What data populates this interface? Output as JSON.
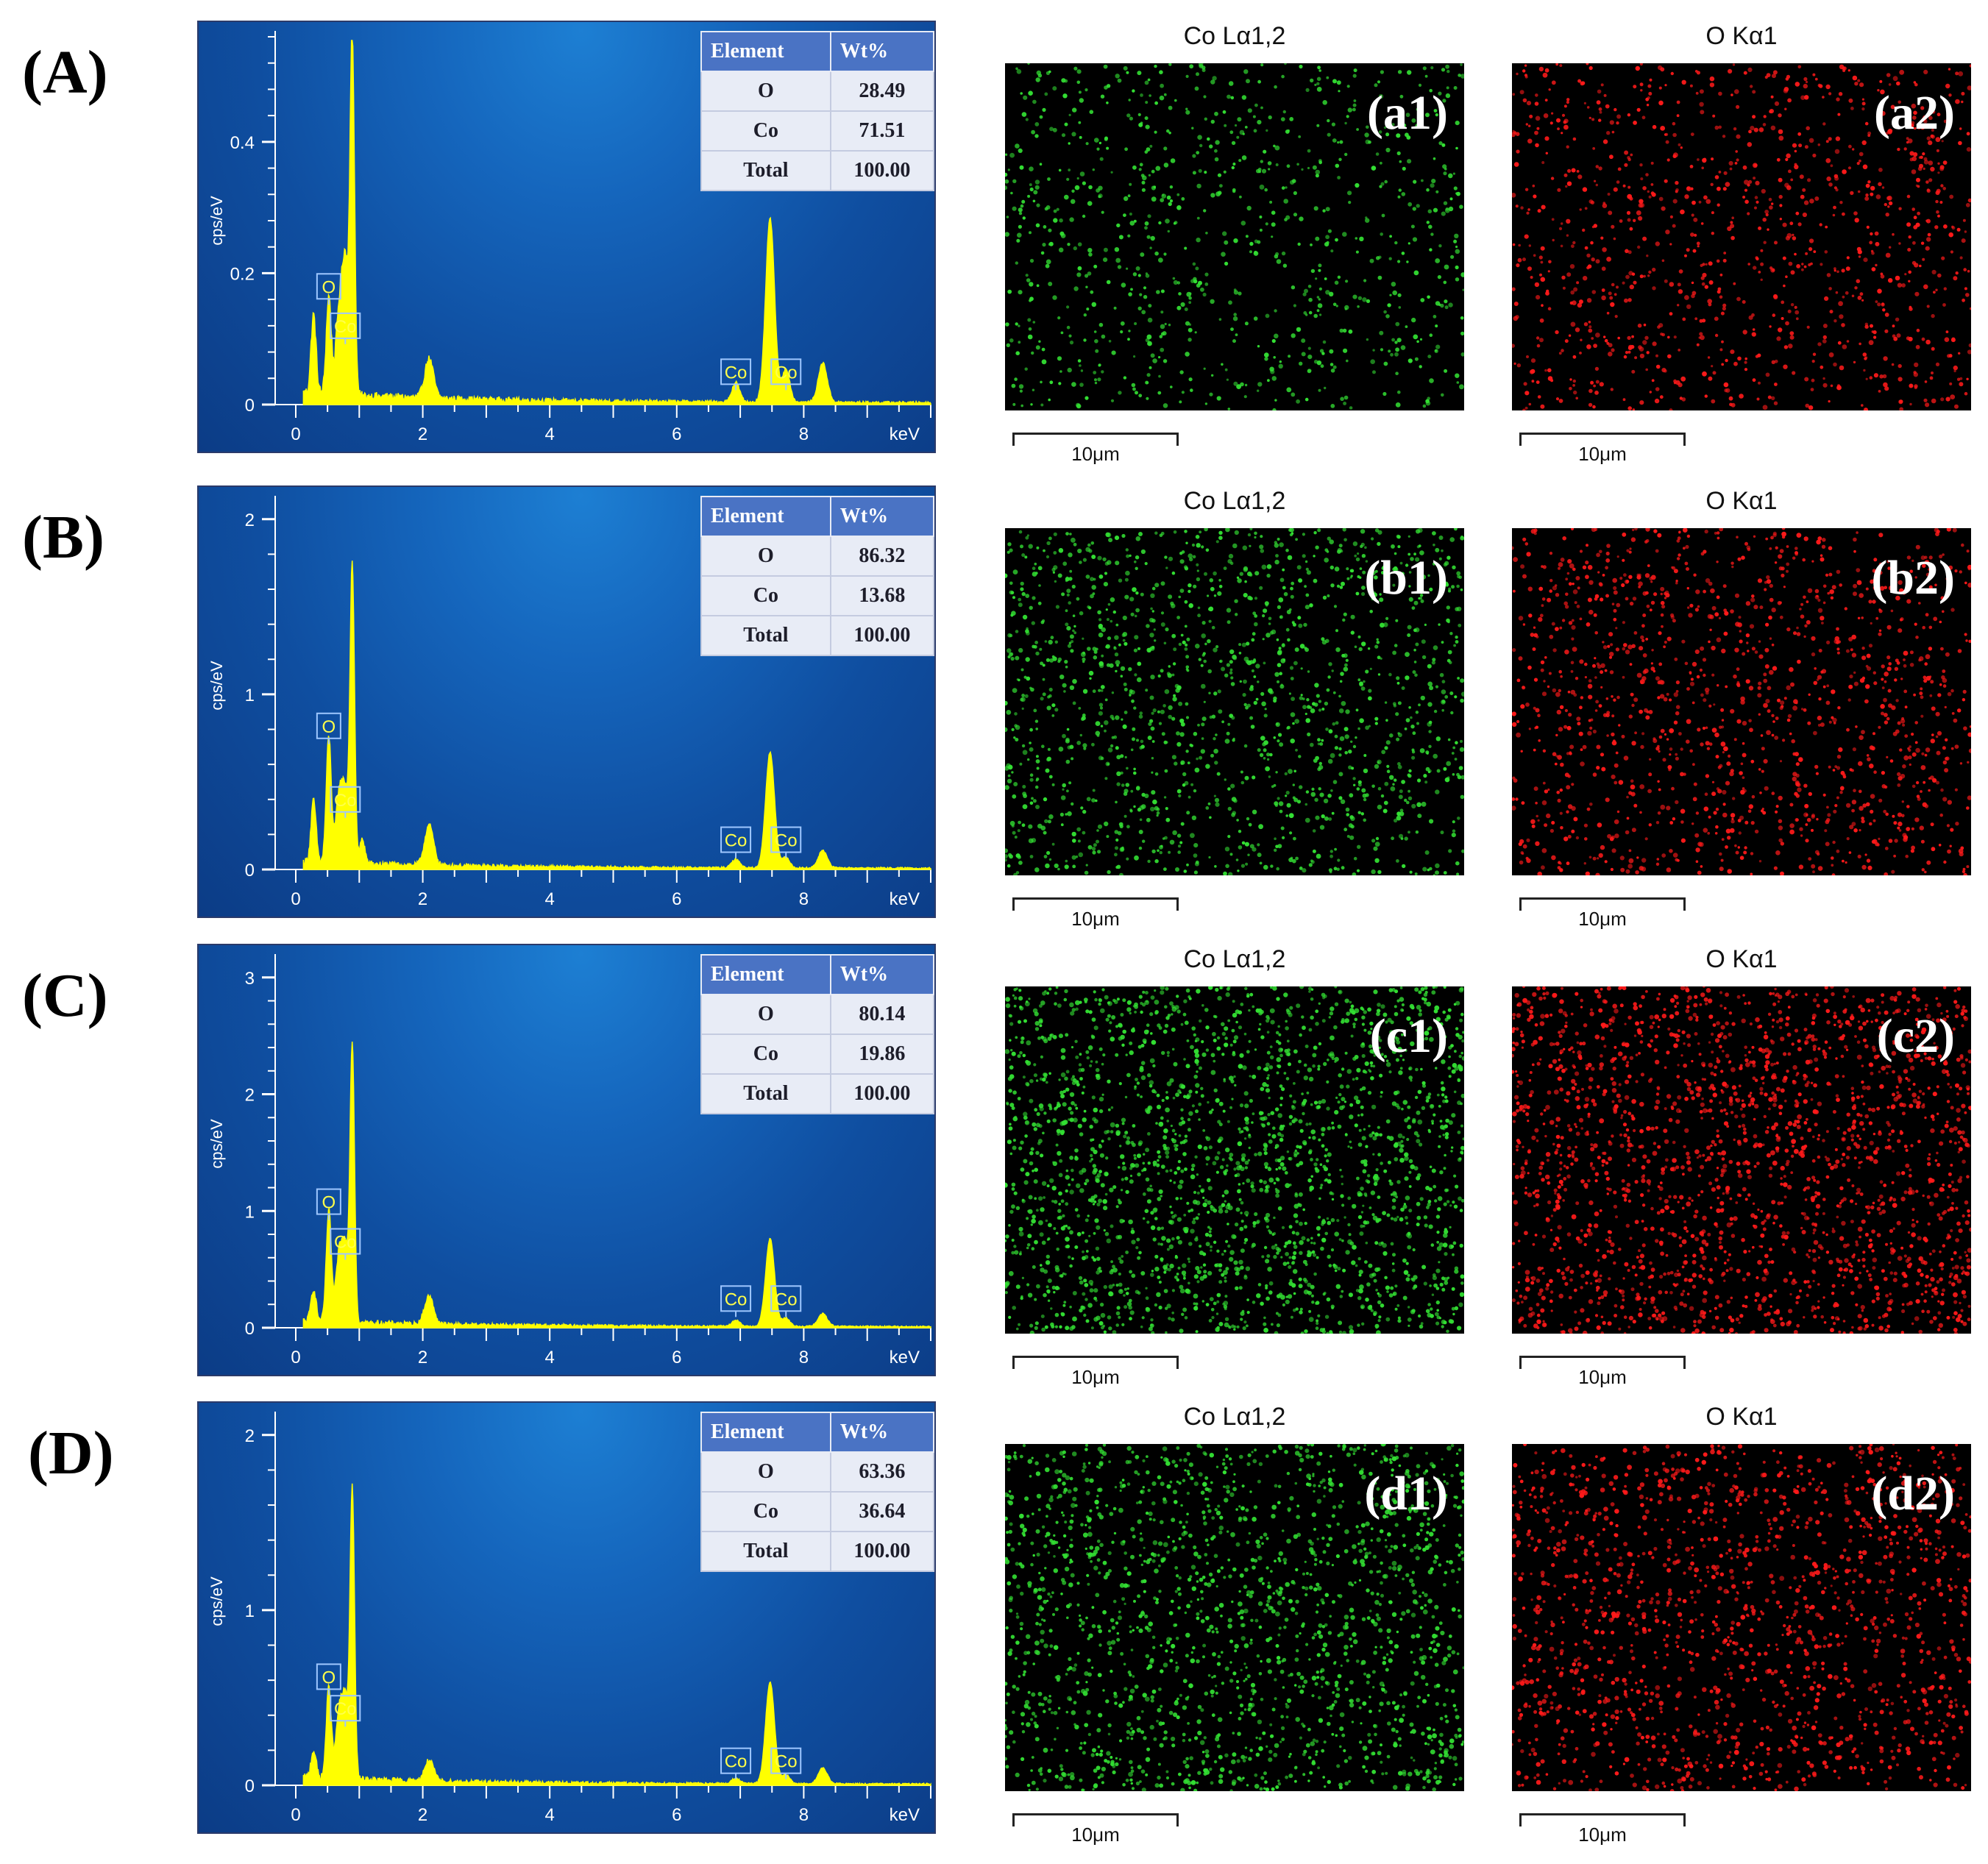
{
  "colors": {
    "co_map": "#33e033",
    "o_map": "#ff1a1a",
    "spectrum": "#ffff00",
    "peak_box": "#9fc7ff"
  },
  "axis": {
    "x_unit": "keV",
    "y_label": "cps/eV",
    "x_ticks": [
      "0",
      "2",
      "4",
      "6",
      "8"
    ]
  },
  "scale_bar_text": "10μm",
  "table_headers": [
    "Element",
    "Wt%"
  ],
  "rows": [
    {
      "label": "(A)",
      "chart_data": {
        "type": "line",
        "xlabel": "keV",
        "ylabel": "cps/eV",
        "xlim": [
          0,
          10
        ],
        "ylim": [
          0,
          0.56
        ],
        "y_ticks": [
          "0",
          "0.2",
          "0.4"
        ],
        "y_tick_values": [
          0,
          0.2,
          0.4
        ],
        "peaks": [
          {
            "x": 0.28,
            "y": 0.12,
            "w": 0.04
          },
          {
            "x": 0.52,
            "y": 0.15,
            "w": 0.04
          },
          {
            "x": 0.68,
            "y": 0.12,
            "w": 0.05
          },
          {
            "x": 0.78,
            "y": 0.2,
            "w": 0.05
          },
          {
            "x": 0.89,
            "y": 0.54,
            "w": 0.035
          },
          {
            "x": 2.1,
            "y": 0.06,
            "w": 0.07
          },
          {
            "x": 6.93,
            "y": 0.03,
            "w": 0.06
          },
          {
            "x": 7.47,
            "y": 0.28,
            "w": 0.07
          },
          {
            "x": 7.72,
            "y": 0.05,
            "w": 0.06
          },
          {
            "x": 8.3,
            "y": 0.06,
            "w": 0.07
          }
        ],
        "noise": 0.012,
        "annotations": [
          {
            "text": "O",
            "x": 0.52,
            "y": 0.18
          },
          {
            "text": "Co",
            "x": 0.78,
            "y": 0.12
          },
          {
            "text": "Co",
            "x": 6.93,
            "y": 0.05
          },
          {
            "text": "Co",
            "x": 7.72,
            "y": 0.05
          }
        ]
      },
      "table": [
        {
          "element": "O",
          "wt": "28.49"
        },
        {
          "element": "Co",
          "wt": "71.51"
        },
        {
          "element": "Total",
          "wt": "100.00"
        }
      ],
      "maps": [
        {
          "title": "Co Lα1,2",
          "label": "(a1)",
          "element": "Co",
          "density": 900
        },
        {
          "title": "O Kα1",
          "label": "(a2)",
          "element": "O",
          "density": 1100
        }
      ]
    },
    {
      "label": "(B)",
      "chart_data": {
        "type": "line",
        "xlabel": "keV",
        "ylabel": "cps/eV",
        "xlim": [
          0,
          10
        ],
        "ylim": [
          0,
          2.1
        ],
        "y_ticks": [
          "0",
          "1",
          "2"
        ],
        "y_tick_values": [
          0,
          1,
          2
        ],
        "peaks": [
          {
            "x": 0.28,
            "y": 0.35,
            "w": 0.04
          },
          {
            "x": 0.52,
            "y": 0.72,
            "w": 0.04
          },
          {
            "x": 0.68,
            "y": 0.38,
            "w": 0.05
          },
          {
            "x": 0.78,
            "y": 0.4,
            "w": 0.05
          },
          {
            "x": 0.89,
            "y": 1.68,
            "w": 0.035
          },
          {
            "x": 1.05,
            "y": 0.14,
            "w": 0.04
          },
          {
            "x": 2.1,
            "y": 0.23,
            "w": 0.07
          },
          {
            "x": 6.93,
            "y": 0.05,
            "w": 0.06
          },
          {
            "x": 7.47,
            "y": 0.66,
            "w": 0.07
          },
          {
            "x": 7.72,
            "y": 0.06,
            "w": 0.06
          },
          {
            "x": 8.3,
            "y": 0.1,
            "w": 0.07
          }
        ],
        "noise": 0.03,
        "annotations": [
          {
            "text": "O",
            "x": 0.52,
            "y": 0.82
          },
          {
            "text": "Co",
            "x": 0.78,
            "y": 0.4
          },
          {
            "text": "Co",
            "x": 6.93,
            "y": 0.17
          },
          {
            "text": "Co",
            "x": 7.72,
            "y": 0.17
          }
        ]
      },
      "table": [
        {
          "element": "O",
          "wt": "86.32"
        },
        {
          "element": "Co",
          "wt": "13.68"
        },
        {
          "element": "Total",
          "wt": "100.00"
        }
      ],
      "maps": [
        {
          "title": "Co Lα1,2",
          "label": "(b1)",
          "element": "Co",
          "density": 1500
        },
        {
          "title": "O Kα1",
          "label": "(b2)",
          "element": "O",
          "density": 1300
        }
      ]
    },
    {
      "label": "(C)",
      "chart_data": {
        "type": "line",
        "xlabel": "keV",
        "ylabel": "cps/eV",
        "xlim": [
          0,
          10
        ],
        "ylim": [
          0,
          3.15
        ],
        "y_ticks": [
          "0",
          "1",
          "2",
          "3"
        ],
        "y_tick_values": [
          0,
          1,
          2,
          3
        ],
        "peaks": [
          {
            "x": 0.28,
            "y": 0.28,
            "w": 0.04
          },
          {
            "x": 0.52,
            "y": 0.95,
            "w": 0.04
          },
          {
            "x": 0.68,
            "y": 0.55,
            "w": 0.05
          },
          {
            "x": 0.78,
            "y": 0.62,
            "w": 0.05
          },
          {
            "x": 0.89,
            "y": 2.36,
            "w": 0.035
          },
          {
            "x": 2.1,
            "y": 0.24,
            "w": 0.07
          },
          {
            "x": 6.93,
            "y": 0.05,
            "w": 0.06
          },
          {
            "x": 7.47,
            "y": 0.75,
            "w": 0.07
          },
          {
            "x": 7.72,
            "y": 0.07,
            "w": 0.06
          },
          {
            "x": 8.3,
            "y": 0.11,
            "w": 0.07
          }
        ],
        "noise": 0.04,
        "annotations": [
          {
            "text": "O",
            "x": 0.52,
            "y": 1.08
          },
          {
            "text": "Co",
            "x": 0.78,
            "y": 0.74
          },
          {
            "text": "Co",
            "x": 6.93,
            "y": 0.25
          },
          {
            "text": "Co",
            "x": 7.72,
            "y": 0.25
          }
        ]
      },
      "table": [
        {
          "element": "O",
          "wt": "80.14"
        },
        {
          "element": "Co",
          "wt": "19.86"
        },
        {
          "element": "Total",
          "wt": "100.00"
        }
      ],
      "maps": [
        {
          "title": "Co Lα1,2",
          "label": "(c1)",
          "element": "Co",
          "density": 2200
        },
        {
          "title": "O Kα1",
          "label": "(c2)",
          "element": "O",
          "density": 2000
        }
      ]
    },
    {
      "label": "(D)",
      "chart_data": {
        "type": "line",
        "xlabel": "keV",
        "ylabel": "cps/eV",
        "xlim": [
          0,
          10
        ],
        "ylim": [
          0,
          2.1
        ],
        "y_ticks": [
          "0",
          "1",
          "2"
        ],
        "y_tick_values": [
          0,
          1,
          2
        ],
        "peaks": [
          {
            "x": 0.28,
            "y": 0.16,
            "w": 0.04
          },
          {
            "x": 0.52,
            "y": 0.52,
            "w": 0.04
          },
          {
            "x": 0.68,
            "y": 0.36,
            "w": 0.05
          },
          {
            "x": 0.78,
            "y": 0.44,
            "w": 0.05
          },
          {
            "x": 0.89,
            "y": 1.64,
            "w": 0.035
          },
          {
            "x": 2.1,
            "y": 0.12,
            "w": 0.07
          },
          {
            "x": 6.93,
            "y": 0.03,
            "w": 0.06
          },
          {
            "x": 7.47,
            "y": 0.58,
            "w": 0.07
          },
          {
            "x": 7.72,
            "y": 0.05,
            "w": 0.06
          },
          {
            "x": 8.3,
            "y": 0.09,
            "w": 0.07
          }
        ],
        "noise": 0.03,
        "annotations": [
          {
            "text": "O",
            "x": 0.52,
            "y": 0.62
          },
          {
            "text": "Co",
            "x": 0.78,
            "y": 0.44
          },
          {
            "text": "Co",
            "x": 6.93,
            "y": 0.14
          },
          {
            "text": "Co",
            "x": 7.72,
            "y": 0.14
          }
        ]
      },
      "table": [
        {
          "element": "O",
          "wt": "63.36"
        },
        {
          "element": "Co",
          "wt": "36.64"
        },
        {
          "element": "Total",
          "wt": "100.00"
        }
      ],
      "maps": [
        {
          "title": "Co Lα1,2",
          "label": "(d1)",
          "element": "Co",
          "density": 1700
        },
        {
          "title": "O Kα1",
          "label": "(d2)",
          "element": "O",
          "density": 1500
        }
      ]
    }
  ]
}
